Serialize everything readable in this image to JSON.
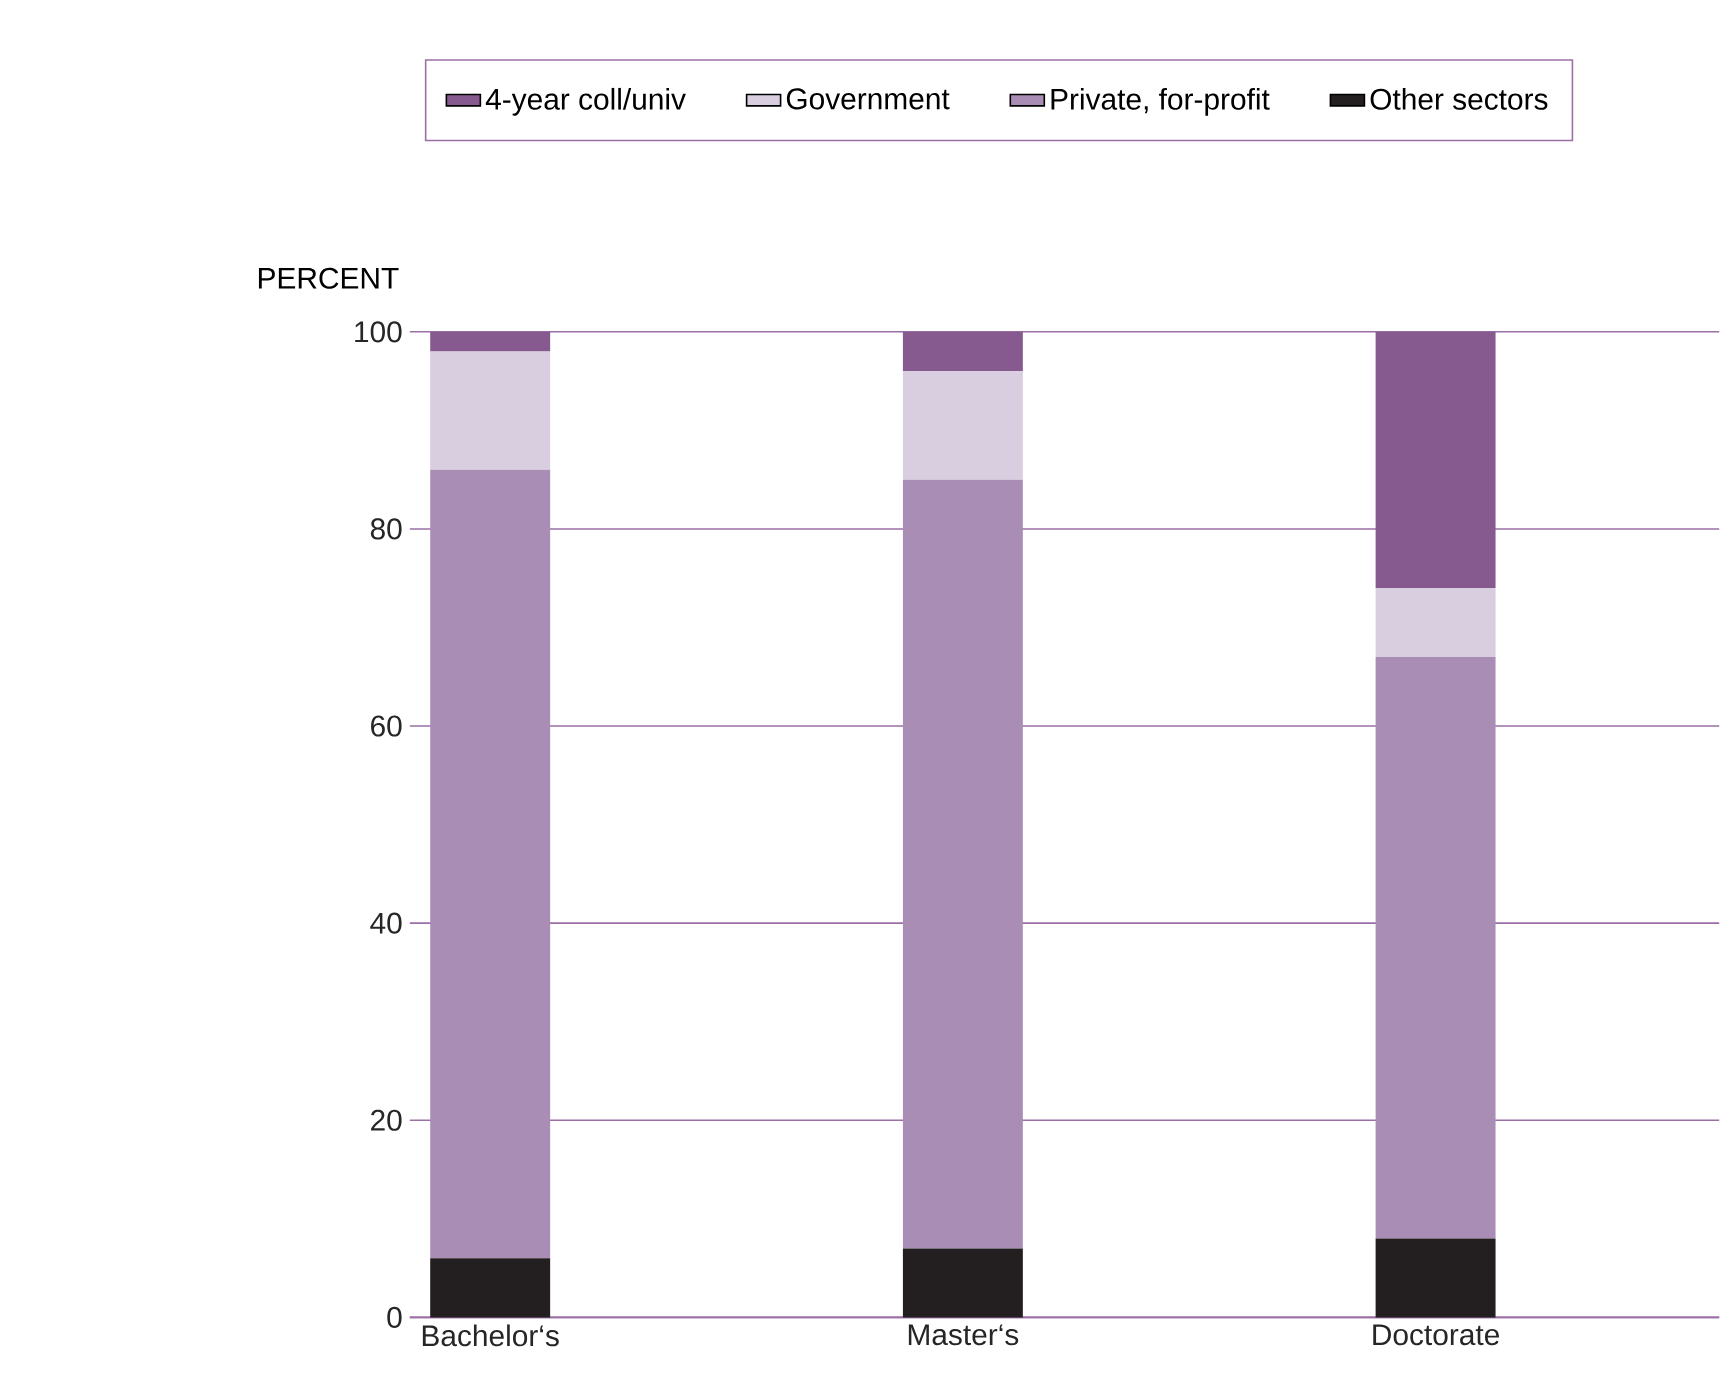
{
  "chart_data": {
    "type": "bar",
    "stacked": true,
    "ylabel": "PERCENT",
    "categories": [
      "Bachelor‘s",
      "Master‘s",
      "Doctorate"
    ],
    "series": [
      {
        "name": "Other sectors",
        "color": "#231f20",
        "values": [
          6,
          7,
          8
        ]
      },
      {
        "name": "Private, for-profit",
        "color": "#a98db5",
        "values": [
          80,
          78,
          59
        ]
      },
      {
        "name": "Government",
        "color": "#d9cde0",
        "values": [
          12,
          11,
          7
        ]
      },
      {
        "name": "4-year coll/univ",
        "color": "#875a8f",
        "values": [
          2,
          4,
          26
        ]
      }
    ],
    "ylim": [
      0,
      100
    ],
    "yticks": [
      0,
      20,
      40,
      60,
      80,
      100
    ],
    "grid": "y",
    "legend": "top"
  }
}
